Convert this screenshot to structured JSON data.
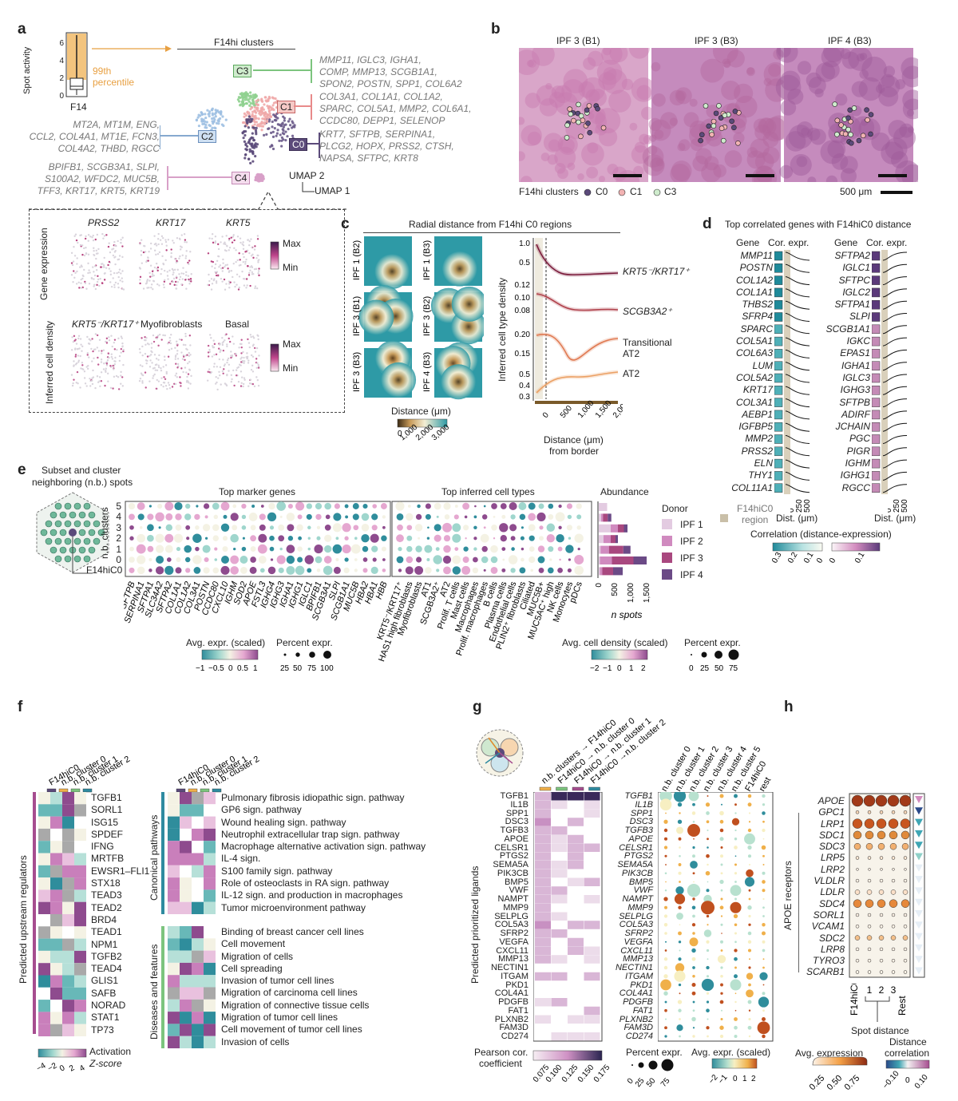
{
  "panels": {
    "a": "a",
    "b": "b",
    "c": "c",
    "d": "d",
    "e": "e",
    "f": "f",
    "g": "g",
    "h": "h"
  },
  "panel_a": {
    "ylabel": "Spot activity",
    "yticks": [
      "6",
      "4",
      "2",
      "0"
    ],
    "xlabel": "F14",
    "percentile": "99th\npercentile",
    "percentile_l1": "99th",
    "percentile_l2": "percentile",
    "clusters_title": "F14hi clusters",
    "clusters": [
      {
        "id": "C3",
        "color": "#7cc47e",
        "genes": [
          "MMP11, IGLC3, IGHA1,",
          "COMP, MMP13, SCGB1A1,",
          "SPON2, POSTN, SPP1, COL6A2"
        ]
      },
      {
        "id": "C1",
        "color": "#e88a8a",
        "genes": [
          "COL3A1, COL1A1, COL1A2,",
          "SPARC, COL5A1, MMP2, COL6A1,",
          "CCDC80, DEPP1, SELENOP"
        ]
      },
      {
        "id": "C0",
        "color": "#5b4a7a",
        "genes": [
          "KRT7, SFTPB, SERPINA1,",
          "PLCG2, HOPX, PRSS2, CTSH,",
          "NAPSA, SFTPC, KRT8"
        ]
      },
      {
        "id": "C2",
        "color": "#86a9cf",
        "genes": [
          "MT2A, MT1M, ENG,",
          "CCL2, COL4A1, MT1E, FCN3,",
          "COL4A2, THBD, RGCC"
        ]
      },
      {
        "id": "C4",
        "color": "#d8a0c8",
        "genes": [
          "BPIFB1, SCGB3A1, SLPI,",
          "S100A2, WFDC2, MUC5B,",
          "TFF3, KRT17, KRT5, KRT19"
        ]
      }
    ],
    "umap2": "UMAP 2",
    "umap1": "UMAP 1",
    "gene_expr_label": "Gene expression",
    "gene_names": [
      "PRSS2",
      "KRT17",
      "KRT5"
    ],
    "cell_density_label": "Inferred cell density",
    "cell_names": [
      "KRT5⁻/KRT17⁺",
      "Myofibroblasts",
      "Basal"
    ],
    "max": "Max",
    "min": "Min"
  },
  "panel_b": {
    "titles": [
      "IPF 3 (B1)",
      "IPF 3 (B3)",
      "IPF 4 (B3)"
    ],
    "legend_title": "F14hi clusters",
    "legend": [
      "C0",
      "C1",
      "C3"
    ],
    "scale": "500 μm"
  },
  "panel_c": {
    "title": "Radial distance from F14hi C0 regions",
    "maps": [
      "IPF 1 (B2)",
      "IPF 1 (B3)",
      "IPF 3 (B1)",
      "IPF 3 (B2)",
      "IPF 3 (B3)",
      "IPF 4 (B3)"
    ],
    "dist_label": "Distance (μm)",
    "dist_ticks": [
      "0",
      "1,000",
      "2,000",
      "3,000"
    ],
    "ylabel": "Inferred cell type density",
    "xlabel": "Distance (μm)",
    "xlabel2": "from border",
    "xticks": [
      "0",
      "500",
      "1,000",
      "1,500",
      "2,000"
    ],
    "lines": [
      "KRT5⁻/KRT17⁺",
      "SCGB3A2⁺",
      "Transitional",
      "AT2",
      "AT2"
    ]
  },
  "panel_d": {
    "title": "Top correlated genes with F14hiC0 distance",
    "col_gene": "Gene",
    "col_cor": "Cor. expr.",
    "left_genes": [
      "MMP11",
      "POSTN",
      "COL1A2",
      "COL1A1",
      "THBS2",
      "SFRP4",
      "SPARC",
      "COL5A1",
      "COL6A3",
      "LUM",
      "COL5A2",
      "KRT17",
      "COL3A1",
      "AEBP1",
      "IGFBP5",
      "MMP2",
      "PRSS2",
      "ELN",
      "THY1",
      "COL11A1"
    ],
    "right_genes": [
      "SFTPA2",
      "IGLC1",
      "SFTPC",
      "IGLC2",
      "SFTPA1",
      "SLPI",
      "SCGB1A1",
      "IGKC",
      "EPAS1",
      "IGHA1",
      "IGLC3",
      "IGHG3",
      "SFTPB",
      "ADIRF",
      "JCHAIN",
      "PGC",
      "PIGR",
      "IGHM",
      "IGHG1",
      "RGCC"
    ],
    "region": "F14hiC0\nregion",
    "region_l1": "F14hiC0",
    "region_l2": "region",
    "dist": "Dist. (μm)",
    "dist_ticks": [
      "0",
      "250",
      "500"
    ],
    "corr_label": "Correlation (distance-expression)",
    "corr_ticks_left": [
      "0.3",
      "0.2",
      "0.1",
      "0"
    ],
    "corr_ticks_right": [
      "0",
      "0.1"
    ]
  },
  "panel_e": {
    "subset_title": "Subset and cluster",
    "subset_title2": "neighboring (n.b.) spots",
    "row_axis": "n.b. clusters",
    "rows": [
      "5",
      "4",
      "3",
      "2",
      "1",
      "0",
      "F14hiC0"
    ],
    "marker_title": "Top marker genes",
    "marker_genes": [
      "SFTPB",
      "SERPINA1",
      "SFTPA1",
      "SLC34A2",
      "SFTPA2",
      "COL1A1",
      "COL1A2",
      "COL3A1",
      "POSTN",
      "CCDC80",
      "CXCL10",
      "IGHM",
      "SOD2",
      "APOE",
      "FSTL3",
      "IGHG4",
      "IGHG3",
      "IGHA1",
      "IGHG1",
      "IGLC1",
      "BPIFB1",
      "SCGB3A1",
      "SLPI",
      "SCGB1A1",
      "MUC5B",
      "HBA2",
      "HBA1",
      "HBB"
    ],
    "celltype_title": "Top inferred cell types",
    "cell_types": [
      "KRT5⁻/KRT17⁺",
      "HAS1 high fibroblasts",
      "Myofibroblasts",
      "AT1",
      "SCGB3A2⁺",
      "AT2",
      "Prolif. T cells",
      "Mast cells",
      "Macrophages",
      "Prolif. macrophages",
      "B cells",
      "Plasma cells",
      "Endothelial cells",
      "PLIN2⁺ fibroblasts",
      "Ciliated",
      "MUC5B+",
      "MUC5AC⁺ high",
      "NK cells",
      "Monocytes",
      "pDCs"
    ],
    "abund_title": "Abundance",
    "abund_ticks": [
      "0",
      "500",
      "1,000",
      "1,500"
    ],
    "abund_xlabel": "n spots",
    "donor_title": "Donor",
    "donors": [
      {
        "name": "IPF 1",
        "color": "#e3cbe1"
      },
      {
        "name": "IPF 2",
        "color": "#d08abf"
      },
      {
        "name": "IPF 3",
        "color": "#a9487f"
      },
      {
        "name": "IPF 4",
        "color": "#6b4a86"
      }
    ],
    "avg_expr": "Avg. expr. (scaled)",
    "avg_expr_ticks": [
      "−1",
      "−0.5",
      "0",
      "0.5",
      "1"
    ],
    "pct_expr": "Percent expr.",
    "pct_ticks": [
      "25",
      "50",
      "75",
      "100"
    ],
    "avg_density": "Avg. cell density (scaled)",
    "density_ticks": [
      "−2",
      "−1",
      "0",
      "1",
      "2"
    ],
    "pct_ticks2": [
      "0",
      "25",
      "50",
      "75"
    ]
  },
  "panel_f": {
    "cols": [
      "F14hiC0",
      "n.b. cluster 0",
      "n.b. cluster 1",
      "n.b. cluster 2"
    ],
    "regulators_label": "Predicted upstream regulators",
    "regulators": [
      "TGFB1",
      "SORL1",
      "ISG15",
      "SPDEF",
      "IFNG",
      "MRTFB",
      "EWSR1–FLI1",
      "STX18",
      "TEAD3",
      "TEAD2",
      "BRD4",
      "TEAD1",
      "NPM1",
      "TGFB2",
      "TEAD4",
      "GLIS1",
      "SAFB",
      "NORAD",
      "STAT1",
      "TP73"
    ],
    "canonical_label": "Canonical pathways",
    "pathways": [
      "Pulmonary fibrosis idiopathic sign. pathway",
      "GP6 sign. pathway",
      "Wound healing sign. pathway",
      "Neutrophil extracellular trap sign. pathway",
      "Macrophage alternative activation sign. pathway",
      "IL-4 sign.",
      "S100 family sign. pathway",
      "Role of osteoclasts in RA sign. pathway",
      "IL-12 sign. and production in macrophages",
      "Tumor microenvironment pathway"
    ],
    "diseases_label": "Diseases and features",
    "diseases": [
      "Binding of breast cancer cell lines",
      "Cell movement",
      "Migration of cells",
      "Cell spreading",
      "Invasion of tumor cell lines",
      "Migration of carcinoma cell lines",
      "Migration of connective tissue cells",
      "Migration of tumor cell lines",
      "Cell movement of tumor cell lines",
      "Invasion of cells"
    ],
    "activation": "Activation",
    "zscore": "Z-score",
    "z_ticks": [
      "−4",
      "−2",
      "0",
      "2",
      "4"
    ]
  },
  "panel_g": {
    "cols": [
      "n.b. clusters → F14hiC0",
      "F14hiC0 → n.b. cluster 0",
      "F14hiC0 → n.b. cluster 1",
      "F14hiC0 →n.b. cluster 2"
    ],
    "ligands_label": "Predicted prioritized ligands",
    "ligands": [
      "TGFB1",
      "IL1B",
      "SPP1",
      "DSC3",
      "TGFB3",
      "APOE",
      "CELSR1",
      "PTGS2",
      "SEMA5A",
      "PIK3CB",
      "BMP5",
      "VWF",
      "NAMPT",
      "MMP9",
      "SELPLG",
      "COL5A3",
      "SFRP2",
      "VEGFA",
      "CXCL11",
      "MMP13",
      "NECTIN1",
      "ITGAM",
      "PKD1",
      "COL4A1",
      "PDGFB",
      "FAT1",
      "PLXNB2",
      "FAM3D",
      "CD274"
    ],
    "pearson": "Pearson cor.",
    "coefficient": "coefficient",
    "pearson_ticks": [
      "0.075",
      "0.100",
      "0.125",
      "0.150",
      "0.175"
    ],
    "dot_cols": [
      "n.b. cluster 0",
      "n.b. cluster 1",
      "n.b. cluster 2",
      "n.b. cluster 3",
      "n.b. cluster 4",
      "n.b. cluster 5",
      "F14hiC0",
      "rest"
    ],
    "pct_expr": "Percent expr.",
    "pct_ticks": [
      "0",
      "25",
      "50",
      "75"
    ],
    "avg_expr": "Avg. expr. (scaled)",
    "avg_ticks": [
      "−2",
      "−1",
      "0",
      "1",
      "2"
    ]
  },
  "panel_h": {
    "genes": [
      "APOE",
      "GPC1",
      "LRP1",
      "SDC1",
      "SDC3",
      "LRP5",
      "LRP2",
      "VLDLR",
      "LDLR",
      "SDC4",
      "SORL1",
      "VCAM1",
      "SDC2",
      "LRP8",
      "TYRO3",
      "SCARB1"
    ],
    "receptors_label": "APOE receptors",
    "cols": [
      "F14hiC0",
      "1",
      "2",
      "3",
      "Rest"
    ],
    "spot_distance": "Spot distance",
    "avg_expr": "Avg. expression",
    "avg_ticks": [
      "0.25",
      "0.50",
      "0.75"
    ],
    "dist_corr": "Distance",
    "dist_corr2": "correlation",
    "corr_ticks": [
      "−0.10",
      "0",
      "0.10"
    ]
  }
}
